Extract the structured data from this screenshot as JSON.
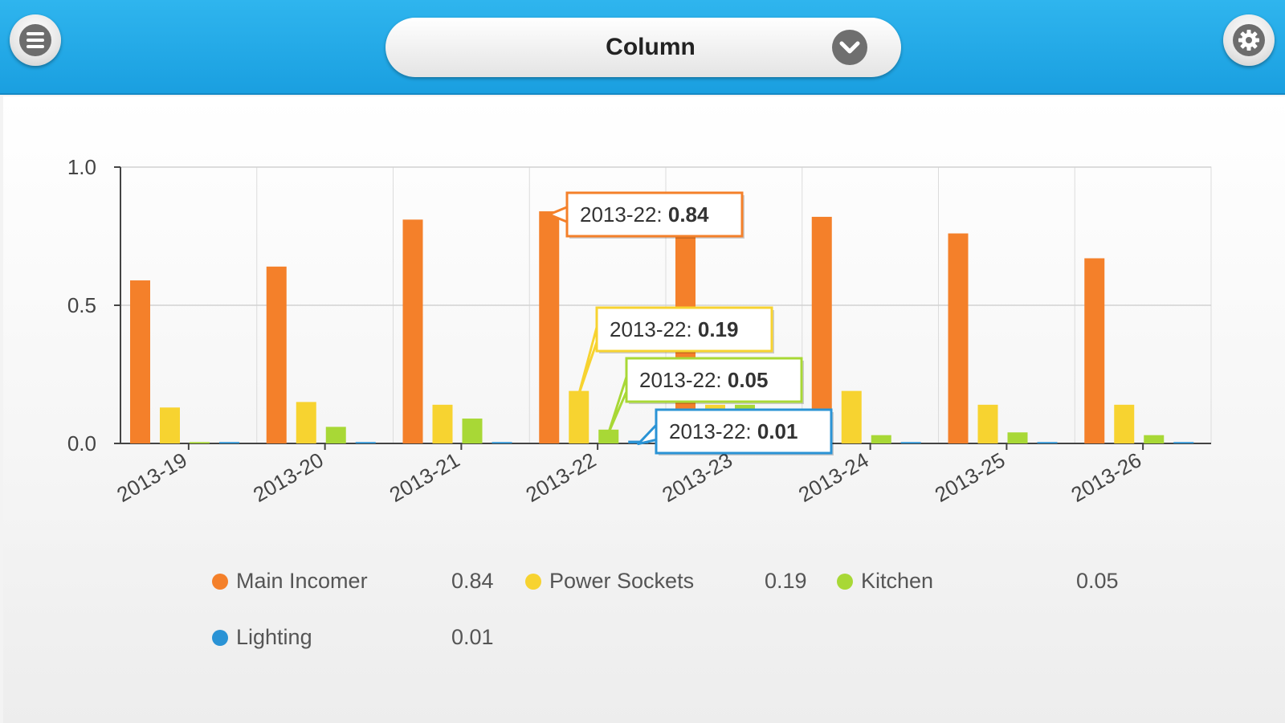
{
  "header": {
    "view_label": "Column",
    "menu_icon": "menu-icon",
    "settings_icon": "gear-icon",
    "dropdown_icon": "chevron-down-icon"
  },
  "chart_data": {
    "type": "bar",
    "categories": [
      "2013-19",
      "2013-20",
      "2013-21",
      "2013-22",
      "2013-23",
      "2013-24",
      "2013-25",
      "2013-26"
    ],
    "series": [
      {
        "name": "Main Incomer",
        "color": "#f4802a",
        "values": [
          0.59,
          0.64,
          0.81,
          0.84,
          0.79,
          0.82,
          0.76,
          0.67
        ]
      },
      {
        "name": "Power Sockets",
        "color": "#f7d330",
        "values": [
          0.13,
          0.15,
          0.14,
          0.19,
          0.14,
          0.19,
          0.14,
          0.14
        ]
      },
      {
        "name": "Kitchen",
        "color": "#a8d836",
        "values": [
          0.005,
          0.06,
          0.09,
          0.05,
          0.14,
          0.03,
          0.04,
          0.03
        ]
      },
      {
        "name": "Lighting",
        "color": "#2a93d5",
        "values": [
          0.005,
          0.005,
          0.005,
          0.01,
          0.005,
          0.005,
          0.005,
          0.005
        ]
      }
    ],
    "yticks": [
      "0.0",
      "0.5",
      "1.0"
    ],
    "ylim": [
      0,
      1.0
    ],
    "grid": true,
    "legend_position": "bottom",
    "tooltips": [
      {
        "series": 0,
        "label": "2013-22: ",
        "value": "0.84"
      },
      {
        "series": 1,
        "label": "2013-22: ",
        "value": "0.19"
      },
      {
        "series": 2,
        "label": "2013-22: ",
        "value": "0.05"
      },
      {
        "series": 3,
        "label": "2013-22: ",
        "value": "0.01"
      }
    ]
  },
  "legend": [
    {
      "name": "Main Incomer",
      "value": "0.84",
      "color": "#f4802a"
    },
    {
      "name": "Power Sockets",
      "value": "0.19",
      "color": "#f7d330"
    },
    {
      "name": "Kitchen",
      "value": "0.05",
      "color": "#a8d836"
    },
    {
      "name": "Lighting",
      "value": "0.01",
      "color": "#2a93d5"
    }
  ]
}
